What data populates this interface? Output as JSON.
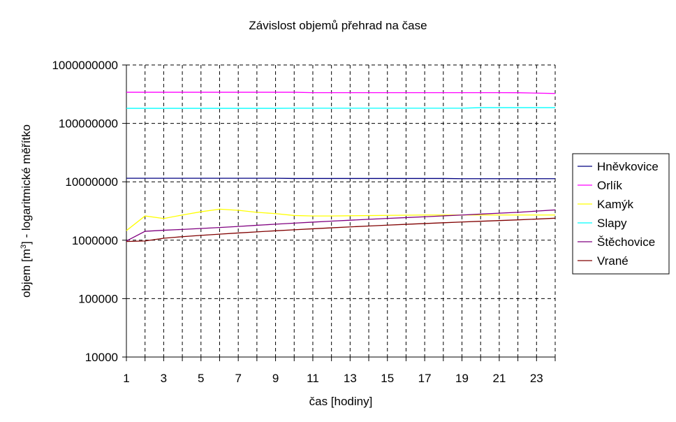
{
  "chart_data": {
    "type": "line",
    "title": "Závislost objemů přehrad na čase",
    "xlabel": "čas [hodiny]",
    "ylabel": {
      "before": "objem [m",
      "sup": "3",
      "after": "] - logaritmické měřítko"
    },
    "x": [
      1,
      2,
      3,
      4,
      5,
      6,
      7,
      8,
      9,
      10,
      11,
      12,
      13,
      14,
      15,
      16,
      17,
      18,
      19,
      20,
      21,
      22,
      23,
      24
    ],
    "xlim": [
      1,
      24
    ],
    "xticks": [
      1,
      3,
      5,
      7,
      9,
      11,
      13,
      15,
      17,
      19,
      21,
      23
    ],
    "x_minor_ticks": [
      2,
      4,
      6,
      8,
      10,
      12,
      14,
      16,
      18,
      20,
      22,
      24
    ],
    "ylim": [
      10000,
      1000000000
    ],
    "yticks": [
      10000,
      100000,
      1000000,
      10000000,
      100000000,
      1000000000
    ],
    "y_log": true,
    "grid": true,
    "legend": "right",
    "series": [
      {
        "name": "Hněvkovice",
        "color": "#000080",
        "values": [
          11500000,
          11500000,
          11500000,
          11500000,
          11500000,
          11500000,
          11500000,
          11500000,
          11500000,
          11400000,
          11400000,
          11400000,
          11400000,
          11400000,
          11400000,
          11400000,
          11400000,
          11400000,
          11300000,
          11300000,
          11300000,
          11300000,
          11300000,
          11300000
        ]
      },
      {
        "name": "Orlík",
        "color": "#ff00ff",
        "values": [
          341000000,
          341000000,
          341000000,
          341000000,
          341000000,
          341000000,
          341000000,
          341000000,
          341000000,
          341000000,
          336000000,
          336000000,
          336000000,
          336000000,
          336000000,
          336000000,
          336000000,
          336000000,
          336000000,
          336000000,
          336000000,
          335000000,
          330000000,
          325000000
        ]
      },
      {
        "name": "Kamýk",
        "color": "#ffff00",
        "values": [
          1460000,
          2600000,
          2350000,
          2700000,
          3070000,
          3400000,
          3250000,
          3000000,
          2850000,
          2650000,
          2600000,
          2600000,
          2620000,
          2640000,
          2660000,
          2680000,
          2700000,
          2700000,
          2700000,
          2700000,
          2700000,
          2700000,
          2700000,
          2700000
        ]
      },
      {
        "name": "Slapy",
        "color": "#00ffff",
        "values": [
          181000000,
          181000000,
          181000000,
          181000000,
          181000000,
          181000000,
          181000000,
          181000000,
          181000000,
          182000000,
          182000000,
          182000000,
          182000000,
          182000000,
          182000000,
          182000000,
          182000000,
          182000000,
          182000000,
          186000000,
          186000000,
          186000000,
          186000000,
          186000000
        ]
      },
      {
        "name": "Štěchovice",
        "color": "#800080",
        "values": [
          970000,
          1420000,
          1480000,
          1530000,
          1590000,
          1650000,
          1720000,
          1800000,
          1880000,
          1960000,
          2040000,
          2120000,
          2200000,
          2280000,
          2360000,
          2440000,
          2520000,
          2610000,
          2700000,
          2800000,
          2900000,
          3000000,
          3150000,
          3300000
        ]
      },
      {
        "name": "Vrané",
        "color": "#800000",
        "values": [
          950000,
          970000,
          1080000,
          1150000,
          1210000,
          1270000,
          1330000,
          1390000,
          1450000,
          1510000,
          1570000,
          1630000,
          1690000,
          1750000,
          1810000,
          1870000,
          1930000,
          1990000,
          2050000,
          2110000,
          2170000,
          2230000,
          2300000,
          2380000
        ]
      }
    ]
  }
}
